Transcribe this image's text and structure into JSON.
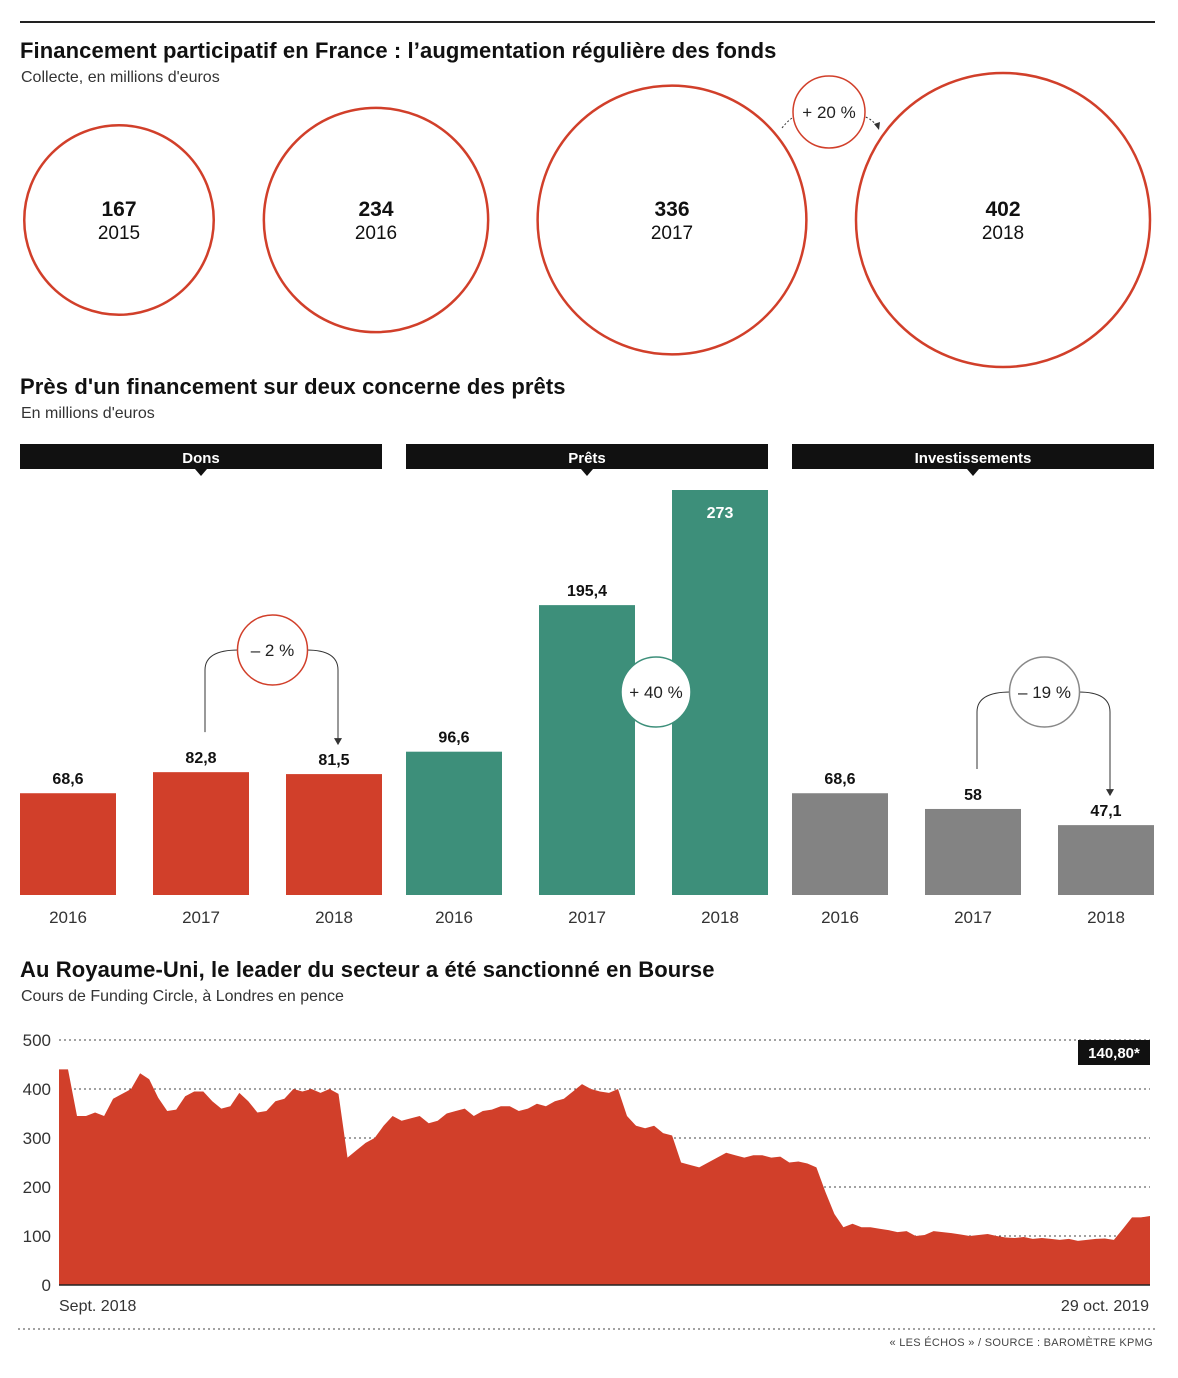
{
  "colors": {
    "red": "#d13f2a",
    "green": "#3d8f7a",
    "gray": "#838383",
    "black": "#111111"
  },
  "footer": "« LES ÉCHOS » / SOURCE : BAROMÈTRE KPMG",
  "section1": {
    "title": "Financement participatif en France : l’augmentation régulière des fonds",
    "subtitle": "Collecte, en millions d'euros",
    "growth_label": "+ 20 %"
  },
  "section2": {
    "title": "Près d'un financement sur deux concerne des prêts",
    "subtitle": "En millions d'euros"
  },
  "section3": {
    "title": "Au Royaume-Uni, le leader du secteur a été sanctionné en Bourse",
    "subtitle": "Cours de Funding Circle, à Londres en pence"
  },
  "chart_data": [
    {
      "type": "bubble",
      "title": "Financement participatif en France : l’augmentation régulière des fonds",
      "subtitle": "Collecte, en millions d'euros",
      "categories": [
        "2015",
        "2016",
        "2017",
        "2018"
      ],
      "values": [
        167,
        234,
        336,
        402
      ],
      "annotations": [
        {
          "from": "2017",
          "to": "2018",
          "label": "+ 20 %"
        }
      ]
    },
    {
      "type": "bar",
      "title": "Près d'un financement sur deux concerne des prêts",
      "subtitle": "En millions d'euros",
      "groups": [
        {
          "name": "Dons",
          "color": "#d13f2a",
          "categories": [
            "2016",
            "2017",
            "2018"
          ],
          "values": [
            68.6,
            82.8,
            81.5
          ],
          "labels": [
            "68,6",
            "82,8",
            "81,5"
          ],
          "change": "– 2 %"
        },
        {
          "name": "Prêts",
          "color": "#3d8f7a",
          "categories": [
            "2016",
            "2017",
            "2018"
          ],
          "values": [
            96.6,
            195.4,
            273
          ],
          "labels": [
            "96,6",
            "195,4",
            "273"
          ],
          "change": "+ 40 %"
        },
        {
          "name": "Investissements",
          "color": "#838383",
          "categories": [
            "2016",
            "2017",
            "2018"
          ],
          "values": [
            68.6,
            58,
            47.1
          ],
          "labels": [
            "68,6",
            "58",
            "47,1"
          ],
          "change": "– 19 %"
        }
      ]
    },
    {
      "type": "area",
      "title": "Au Royaume-Uni, le leader du secteur a été sanctionné en Bourse",
      "subtitle": "Cours de Funding Circle, à Londres en pence",
      "ylim": [
        0,
        500
      ],
      "yticks": [
        0,
        100,
        200,
        300,
        400,
        500
      ],
      "x_start_label": "Sept. 2018",
      "x_end_label": "29 oct. 2019",
      "last_value_label": "140,80*",
      "series": [
        {
          "values": [
            440,
            440,
            345,
            345,
            352,
            345,
            380,
            390,
            400,
            432,
            420,
            382,
            355,
            358,
            385,
            395,
            395,
            375,
            360,
            365,
            392,
            375,
            352,
            355,
            375,
            380,
            400,
            395,
            400,
            392,
            400,
            390,
            260,
            275,
            290,
            300,
            325,
            345,
            335,
            340,
            345,
            330,
            335,
            350,
            355,
            360,
            345,
            355,
            358,
            365,
            365,
            355,
            360,
            370,
            365,
            375,
            380,
            395,
            410,
            400,
            395,
            392,
            400,
            345,
            325,
            320,
            325,
            310,
            305,
            250,
            245,
            240,
            250,
            260,
            270,
            265,
            260,
            265,
            265,
            260,
            262,
            250,
            252,
            248,
            240,
            190,
            145,
            118,
            125,
            118,
            118,
            115,
            112,
            108,
            110,
            100,
            102,
            110,
            108,
            106,
            103,
            100,
            102,
            104,
            100,
            97,
            96,
            98,
            94,
            96,
            94,
            92,
            94,
            90,
            92,
            94,
            95,
            92,
            115,
            138,
            138,
            140.8
          ]
        }
      ]
    }
  ]
}
